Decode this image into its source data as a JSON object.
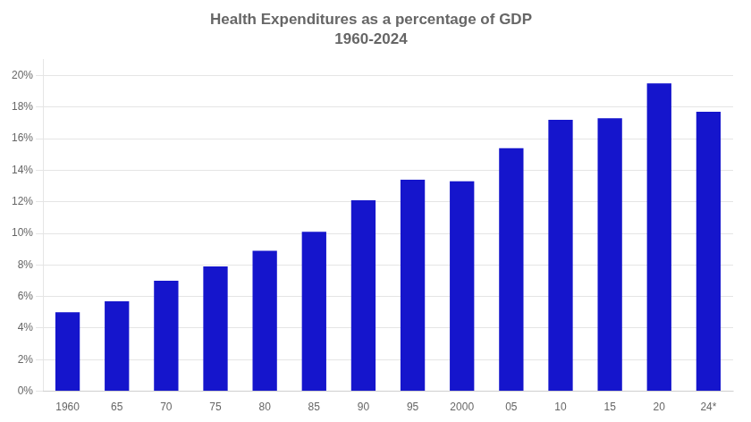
{
  "chart_data": {
    "type": "bar",
    "title": "Health Expenditures as a percentage of GDP",
    "subtitle": "1960-2024",
    "categories": [
      "1960",
      "65",
      "70",
      "75",
      "80",
      "85",
      "90",
      "95",
      "2000",
      "05",
      "10",
      "15",
      "20",
      "24*"
    ],
    "values": [
      5.0,
      5.7,
      7.0,
      7.9,
      8.9,
      10.1,
      12.1,
      13.4,
      13.3,
      15.4,
      17.2,
      17.3,
      19.5,
      17.7
    ],
    "color": "#1515cc",
    "ylim": [
      0,
      21
    ],
    "yticks": [
      {
        "value": 0,
        "label": "0%"
      },
      {
        "value": 2,
        "label": "2%"
      },
      {
        "value": 4,
        "label": "4%"
      },
      {
        "value": 6,
        "label": "6%"
      },
      {
        "value": 8,
        "label": "8%"
      },
      {
        "value": 10,
        "label": "10%"
      },
      {
        "value": 12,
        "label": "12%"
      },
      {
        "value": 14,
        "label": "14%"
      },
      {
        "value": 16,
        "label": "16%"
      },
      {
        "value": 18,
        "label": "18%"
      },
      {
        "value": 20,
        "label": "20%"
      }
    ],
    "grid": true
  }
}
